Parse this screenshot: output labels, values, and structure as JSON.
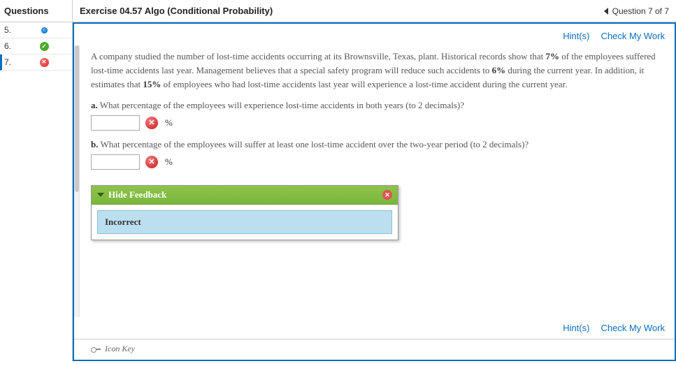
{
  "sidebar": {
    "header": "Questions",
    "items": [
      {
        "num": "5.",
        "status": "in-progress"
      },
      {
        "num": "6.",
        "status": "correct"
      },
      {
        "num": "7.",
        "status": "incorrect",
        "active": true
      }
    ]
  },
  "header": {
    "title": "Exercise 04.57 Algo (Conditional Probability)",
    "counter": "Question 7 of 7"
  },
  "toolbar": {
    "hints": "Hint(s)",
    "check": "Check My Work"
  },
  "prompt": {
    "text_parts": [
      "A company studied the number of lost-time accidents occurring at its Brownsville, Texas, plant. Historical records show that ",
      "7%",
      " of the employees suffered lost-time accidents last year. Management believes that a special safety program will reduce such accidents to ",
      "6%",
      " during the current year. In addition, it estimates that ",
      "15%",
      " of employees who had lost-time accidents last year will experience a lost-time accident during the current year."
    ]
  },
  "parts": {
    "a": {
      "label": "a.",
      "question": "What percentage of the employees will experience lost-time accidents in both years (to 2 decimals)?",
      "unit": "%",
      "value": "",
      "status": "incorrect"
    },
    "b": {
      "label": "b.",
      "question": "What percentage of the employees will suffer at least one lost-time accident over the two-year period (to 2 decimals)?",
      "unit": "%",
      "value": "",
      "status": "incorrect"
    }
  },
  "feedback": {
    "toggle_label": "Hide Feedback",
    "message": "Incorrect"
  },
  "footer": {
    "icon_key": "Icon Key"
  },
  "colors": {
    "accent": "#0a6ec0",
    "green": "#7ab63d",
    "blue_band": "#bcdff0",
    "error": "#c91e1e"
  }
}
